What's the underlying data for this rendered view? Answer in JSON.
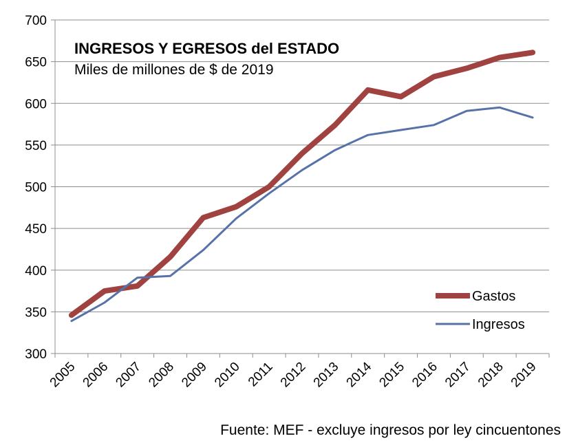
{
  "chart_data": {
    "type": "line",
    "title": "INGRESOS Y EGRESOS del ESTADO",
    "subtitle": "Miles de millones de $ de 2019",
    "x": [
      "2005",
      "2006",
      "2007",
      "2008",
      "2009",
      "2010",
      "2011",
      "2012",
      "2013",
      "2014",
      "2015",
      "2016",
      "2017",
      "2018",
      "2019"
    ],
    "ylim": [
      300,
      700
    ],
    "yticks": [
      300,
      350,
      400,
      450,
      500,
      550,
      600,
      650,
      700
    ],
    "grid": true,
    "legend_position": "bottom-right",
    "series": [
      {
        "name": "Gastos",
        "color": "#A0423F",
        "values": [
          346,
          375,
          381,
          416,
          463,
          476,
          500,
          540,
          574,
          616,
          608,
          632,
          642,
          655,
          661
        ]
      },
      {
        "name": "Ingresos",
        "color": "#5672A8",
        "values": [
          339,
          361,
          391,
          393,
          424,
          462,
          492,
          520,
          544,
          562,
          568,
          574,
          591,
          595,
          583
        ]
      }
    ],
    "source_note": "Fuente: MEF - excluye ingresos por ley cincuentones"
  }
}
